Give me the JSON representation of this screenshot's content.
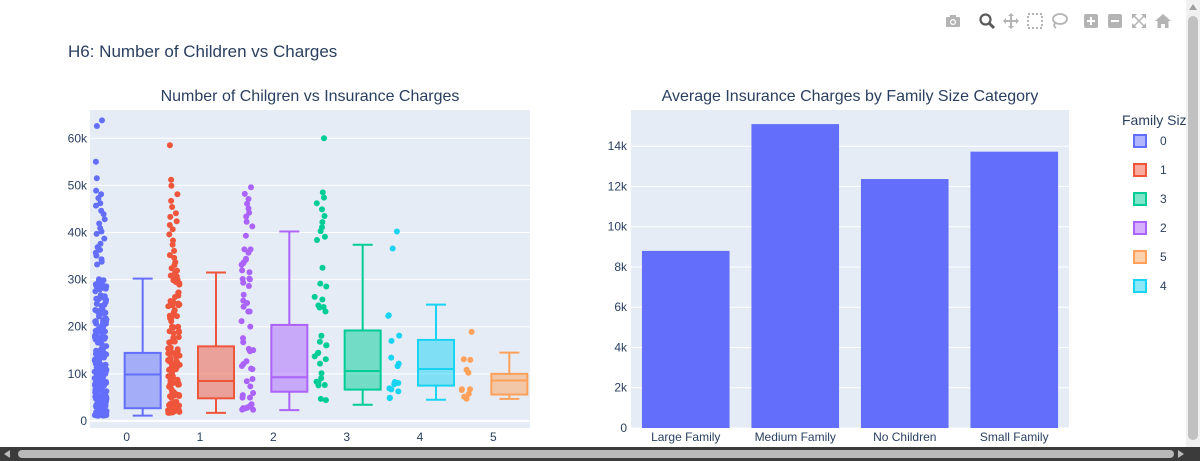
{
  "page_heading": "H6: Number of Children vs Charges",
  "modebar": [
    "camera-icon",
    "zoom-icon",
    "pan-icon",
    "box-select-icon",
    "lasso-icon",
    "zoom-in-icon",
    "zoom-out-icon",
    "autoscale-icon",
    "reset-axes-icon"
  ],
  "colors": {
    "0": "#636efa",
    "1": "#ef553b",
    "2": "#ab63fa",
    "3": "#00cc96",
    "4": "#19d3f3",
    "5": "#ffa15a",
    "bar": "#636efa",
    "plot_bg": "#e5ecf6",
    "text": "#2a3f5f"
  },
  "chart_data": [
    {
      "type": "box",
      "title": "Number of Chilgren vs Insurance Charges",
      "xlabel": "",
      "ylabel": "",
      "categories": [
        "0",
        "1",
        "2",
        "3",
        "4",
        "5"
      ],
      "ylim": [
        -1500,
        66000
      ],
      "yticks": [
        0,
        10000,
        20000,
        30000,
        40000,
        50000,
        60000
      ],
      "ytick_labels": [
        "0",
        "10k",
        "20k",
        "30k",
        "40k",
        "50k",
        "60k"
      ],
      "grid": true,
      "boxes": [
        {
          "name": "0",
          "min": 1122,
          "q1": 2700,
          "median": 9856,
          "q3": 14440,
          "max": 30200
        },
        {
          "name": "1",
          "min": 1712,
          "q1": 4800,
          "median": 8483,
          "q3": 15830,
          "max": 31500
        },
        {
          "name": "2",
          "min": 2305,
          "q1": 6200,
          "median": 9264,
          "q3": 20380,
          "max": 40200
        },
        {
          "name": "3",
          "min": 3443,
          "q1": 6650,
          "median": 10600,
          "q3": 19200,
          "max": 37400
        },
        {
          "name": "4",
          "min": 4505,
          "q1": 7500,
          "median": 11034,
          "q3": 17200,
          "max": 24700
        },
        {
          "name": "5",
          "min": 4688,
          "q1": 5600,
          "median": 8590,
          "q3": 10000,
          "max": 14500
        }
      ],
      "outliers": [
        {
          "name": "0",
          "values": [
            63800,
            62600,
            55000,
            51500,
            48900,
            48100,
            47300,
            46200,
            45700,
            44600,
            43900,
            42800,
            41900,
            40900,
            40200,
            39700,
            38700,
            37600,
            36900,
            36300,
            35700,
            35100,
            34300,
            33800,
            33200
          ]
        },
        {
          "name": "1",
          "values": [
            58500,
            51200,
            49900,
            48100,
            46700,
            45400,
            44100,
            43300,
            42400,
            41600,
            40700,
            39600,
            38300,
            37400,
            36100,
            35200,
            34600,
            33700,
            33100,
            32400,
            31900
          ]
        },
        {
          "name": "2",
          "values": [
            49600,
            48200,
            47100,
            46100,
            45100,
            44200,
            43400,
            42300,
            41300
          ]
        },
        {
          "name": "3",
          "values": [
            60000,
            48500,
            47400,
            46200,
            44900,
            43500,
            42200,
            41100,
            40300,
            39100,
            38400
          ]
        },
        {
          "name": "4",
          "values": [
            40200,
            36600
          ]
        },
        {
          "name": "5",
          "values": [
            18900
          ]
        }
      ]
    },
    {
      "type": "bar",
      "title": "Average Insurance Charges by Family Size Category",
      "xlabel": "",
      "ylabel": "",
      "categories": [
        "Large Family",
        "Medium Family",
        "No Children",
        "Small Family"
      ],
      "values": [
        8800,
        15100,
        12370,
        13730
      ],
      "ylim": [
        0,
        15800
      ],
      "yticks": [
        0,
        2000,
        4000,
        6000,
        8000,
        10000,
        12000,
        14000
      ],
      "ytick_labels": [
        "0",
        "2k",
        "4k",
        "6k",
        "8k",
        "10k",
        "12k",
        "14k"
      ],
      "grid": true
    }
  ],
  "legend": {
    "title": "Family Siz",
    "position": "right",
    "items": [
      "0",
      "1",
      "3",
      "2",
      "5",
      "4"
    ]
  }
}
